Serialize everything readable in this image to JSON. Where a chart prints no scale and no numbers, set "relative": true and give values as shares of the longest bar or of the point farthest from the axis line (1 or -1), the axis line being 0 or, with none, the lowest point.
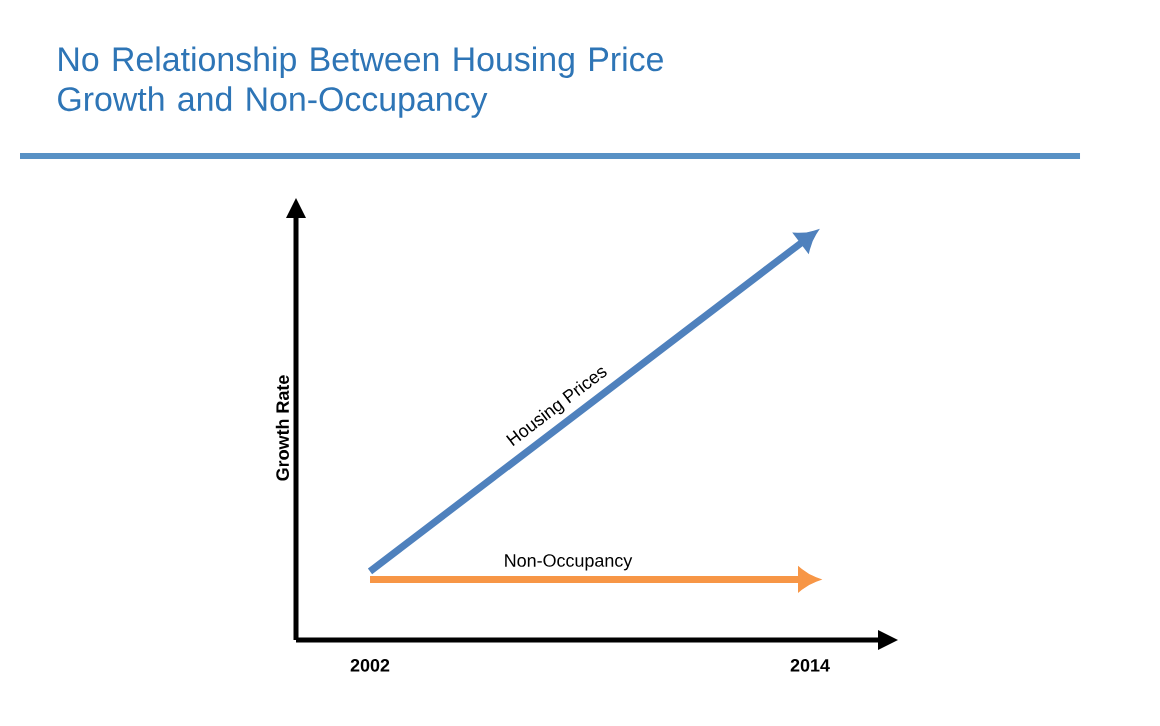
{
  "chart_data": {
    "type": "line",
    "title": "No Relationship Between Housing Price Growth and Non-Occupancy",
    "ylabel": "Growth Rate",
    "relative": true,
    "categories": [
      "2002",
      "2014"
    ],
    "marker": "none",
    "series": [
      {
        "name": "Housing Prices",
        "color": "#4f81bd",
        "values": [
          0.17,
          1
        ]
      },
      {
        "name": "Non-Occupancy",
        "color": "#f79646",
        "values": [
          0.15,
          0.15
        ]
      }
    ]
  }
}
